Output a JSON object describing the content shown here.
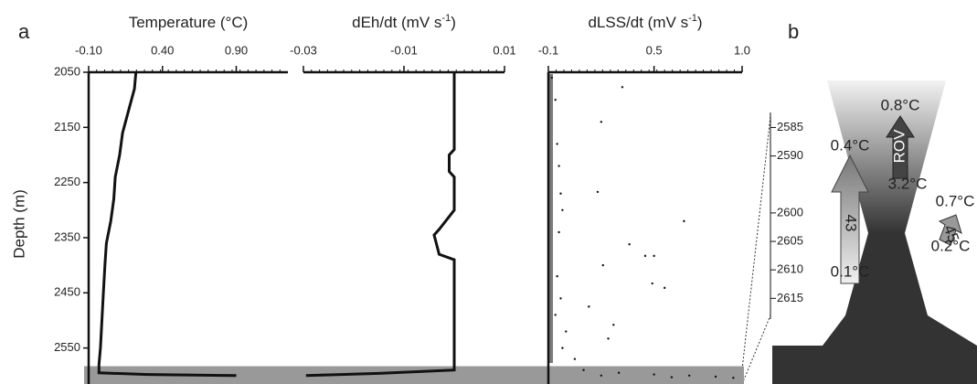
{
  "chart_data": [
    {
      "type": "profile",
      "panel": "a",
      "xlabel": "Temperature (°C)",
      "ylabel": "Depth (m)",
      "xlim": [
        -0.1,
        1.25
      ],
      "xticks": [
        {
          "value": -0.1,
          "label": "-0.10"
        },
        {
          "value": 0.4,
          "label": "0.40"
        },
        {
          "value": 0.9,
          "label": "0.90"
        }
      ],
      "ylim": [
        2050,
        2607
      ],
      "yticks": [
        2050,
        2150,
        2250,
        2350,
        2450,
        2550
      ],
      "color": "#111111",
      "depth": [
        2050,
        2080,
        2120,
        2160,
        2200,
        2240,
        2280,
        2320,
        2360,
        2400,
        2450,
        2500,
        2550,
        2580,
        2595,
        2598,
        2600
      ],
      "values": [
        0.22,
        0.21,
        0.17,
        0.13,
        0.11,
        0.08,
        0.07,
        0.05,
        0.02,
        0.01,
        0.0,
        -0.01,
        -0.02,
        -0.03,
        -0.03,
        0.3,
        0.9
      ]
    },
    {
      "type": "profile",
      "xlabel": "dEh/dt (mV s",
      "xlabel_sup": "-1",
      "xlabel_end": ")",
      "xlim": [
        -0.03,
        0.01
      ],
      "xticks": [
        -0.03,
        -0.01,
        0.01
      ],
      "ylim": [
        2050,
        2607
      ],
      "color": "#111111",
      "depth": [
        2050,
        2100,
        2150,
        2190,
        2200,
        2230,
        2240,
        2300,
        2335,
        2345,
        2380,
        2390,
        2450,
        2550,
        2590,
        2596,
        2600
      ],
      "values": [
        0.0,
        0.0,
        0.0,
        0.0,
        -0.001,
        -0.001,
        0.0,
        0.0,
        -0.003,
        -0.004,
        -0.003,
        0.0,
        0.0,
        0.0,
        0.0,
        -0.015,
        -0.0295
      ]
    },
    {
      "type": "scatter",
      "xlabel": "dLSS/dt (mV s",
      "xlabel_sup": "-1",
      "xlabel_end": ")",
      "xlim": [
        -0.1,
        1.0
      ],
      "xticks": [
        -0.1,
        0.5,
        {
          "value": 1.0,
          "label": "1.0"
        }
      ],
      "ylim": [
        2050,
        2607
      ],
      "color": "#111111",
      "depth": [
        2060,
        2077,
        2100,
        2140,
        2180,
        2220,
        2267,
        2270,
        2300,
        2320,
        2340,
        2362,
        2383,
        2383,
        2400,
        2420,
        2433,
        2441,
        2460,
        2475,
        2490,
        2508,
        2520,
        2533,
        2550,
        2570,
        2590,
        2595,
        2598,
        2600,
        2602,
        2604,
        2600,
        2603
      ],
      "values": [
        -0.08,
        0.32,
        -0.06,
        0.2,
        -0.05,
        -0.04,
        0.18,
        -0.03,
        -0.02,
        0.67,
        -0.04,
        0.36,
        0.45,
        0.5,
        0.21,
        -0.05,
        0.49,
        0.56,
        -0.03,
        0.13,
        -0.06,
        0.27,
        0.0,
        0.24,
        -0.02,
        0.05,
        0.1,
        0.3,
        0.5,
        0.7,
        0.85,
        0.95,
        0.2,
        0.6
      ]
    },
    {
      "type": "schematic",
      "panel": "b",
      "ylim": [
        2583,
        2618
      ],
      "yticks": [
        2585,
        2590,
        2600,
        2605,
        2610,
        2615
      ],
      "annotations": [
        "0.8°C",
        "ROV",
        "3.2°C",
        "0.4°C",
        "43",
        "0.1°C",
        "0.7°C",
        "45",
        "0.2°C"
      ]
    }
  ]
}
